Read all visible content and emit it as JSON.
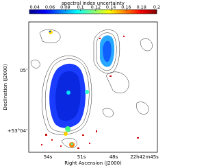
{
  "chart_data": {
    "type": "image",
    "colorbar_label": "spectral index uncertainty",
    "clim": [
      0.033,
      0.2
    ],
    "colorbar_ticks": [
      0.04,
      0.06,
      0.08,
      0.1,
      0.12,
      0.14,
      0.16,
      0.18,
      0.2
    ],
    "xlabel": "Right Ascension (J2000)",
    "ylabel": "Declination (J2000)",
    "x_tick_labels": [
      "54s",
      "51s",
      "48s",
      "22h42m45s"
    ],
    "y_tick_labels": [
      "05'",
      "+53°04'"
    ]
  }
}
